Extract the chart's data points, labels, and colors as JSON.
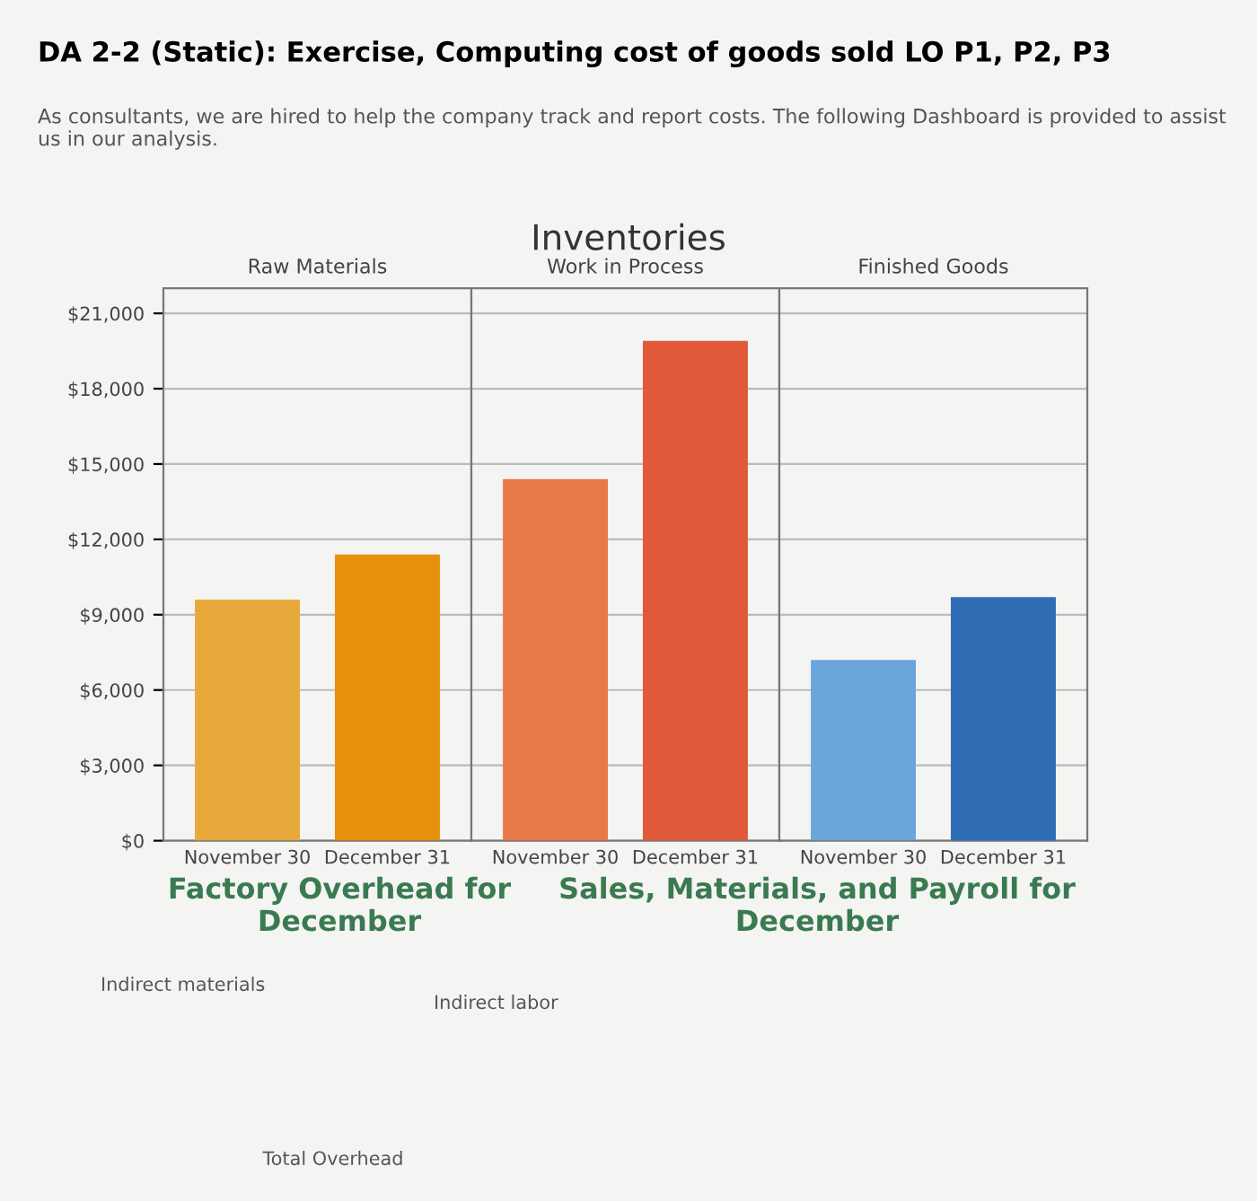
{
  "chart_data": [
    {
      "type": "other",
      "title": "DA 2-2 (Static): Exercise, Computing cost of goods sold LO P1, P2, P3",
      "subtitle": "As consultants, we are hired to help the company track and report costs. The following Dashboard is provided to assist us in our analysis."
    },
    {
      "type": "other",
      "title": "Inventories"
    },
    {
      "type": "bar",
      "title": "Raw Materials",
      "categories": [
        "November 30",
        "December 31"
      ],
      "values": [
        9600,
        11400
      ],
      "colors": [
        "#e8a93c",
        "#e8900c"
      ],
      "ylim": [
        0,
        22000
      ],
      "yticks": [
        {
          "value": 0,
          "label": "$0"
        },
        {
          "value": 3000,
          "label": "$3,000"
        },
        {
          "value": 6000,
          "label": "$6,000"
        },
        {
          "value": 9000,
          "label": "$9,000"
        },
        {
          "value": 12000,
          "label": "$12,000"
        },
        {
          "value": 15000,
          "label": "$15,000"
        },
        {
          "value": 18000,
          "label": "$18,000"
        },
        {
          "value": 21000,
          "label": "$21,000"
        }
      ],
      "grid": "y"
    },
    {
      "type": "bar",
      "title": "Work in Process",
      "categories": [
        "November 30",
        "December 31"
      ],
      "values": [
        14400,
        19900
      ],
      "colors": [
        "#e8794a",
        "#e05a3a"
      ],
      "ylim": [
        0,
        22000
      ],
      "tick_labels": "x",
      "grid": "y"
    },
    {
      "type": "bar",
      "title": "Finished Goods",
      "categories": [
        "November 30",
        "December 31"
      ],
      "values": [
        7200,
        9700
      ],
      "colors": [
        "#6aa6dc",
        "#2f6db5"
      ],
      "ylim": [
        0,
        22000
      ],
      "tick_labels": "x",
      "grid": "y"
    },
    {
      "type": "other",
      "title": "Factory Overhead for December",
      "annotations": [
        "Indirect materials",
        "Indirect labor",
        "Total Overhead"
      ]
    },
    {
      "type": "other",
      "title": "Sales, Materials, and Payroll for December"
    }
  ]
}
